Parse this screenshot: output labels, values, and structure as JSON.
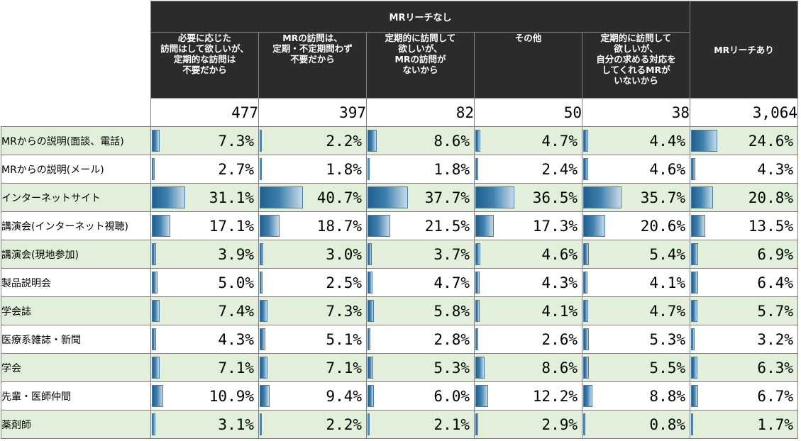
{
  "header": {
    "group_label": "MRリーチなし",
    "columns": [
      "必要に応じた\n訪問はして欲しいが、\n定期的な訪問は\n不要だから",
      "MRの訪問は、\n定期・不定期問わず\n不要だから",
      "定期的に訪問して\n欲しいが、\nMRの訪問が\nないから",
      "その他",
      "定期的に訪問して\n欲しいが、\n自分の求める対応を\nしてくれるMRが\nいないから"
    ],
    "reach_label": "MRリーチあり"
  },
  "counts": [
    "477",
    "397",
    "82",
    "50",
    "38",
    "3,064"
  ],
  "rows": [
    {
      "label": "MRからの説明(面談、電話)",
      "values": [
        "7.3%",
        "2.2%",
        "8.6%",
        "4.7%",
        "4.4%",
        "24.6%"
      ],
      "nums": [
        7.3,
        2.2,
        8.6,
        4.7,
        4.4,
        24.6
      ]
    },
    {
      "label": "MRからの説明(メール)",
      "values": [
        "2.7%",
        "1.8%",
        "1.8%",
        "2.4%",
        "4.6%",
        "4.3%"
      ],
      "nums": [
        2.7,
        1.8,
        1.8,
        2.4,
        4.6,
        4.3
      ]
    },
    {
      "label": "インターネットサイト",
      "values": [
        "31.1%",
        "40.7%",
        "37.7%",
        "36.5%",
        "35.7%",
        "20.8%"
      ],
      "nums": [
        31.1,
        40.7,
        37.7,
        36.5,
        35.7,
        20.8
      ]
    },
    {
      "label": "講演会(インターネット視聴)",
      "values": [
        "17.1%",
        "18.7%",
        "21.5%",
        "17.3%",
        "20.6%",
        "13.5%"
      ],
      "nums": [
        17.1,
        18.7,
        21.5,
        17.3,
        20.6,
        13.5
      ]
    },
    {
      "label": "講演会(現地参加)",
      "values": [
        "3.9%",
        "3.0%",
        "3.7%",
        "4.6%",
        "5.4%",
        "6.9%"
      ],
      "nums": [
        3.9,
        3.0,
        3.7,
        4.6,
        5.4,
        6.9
      ]
    },
    {
      "label": "製品説明会",
      "values": [
        "5.0%",
        "2.5%",
        "4.7%",
        "4.3%",
        "4.1%",
        "6.4%"
      ],
      "nums": [
        5.0,
        2.5,
        4.7,
        4.3,
        4.1,
        6.4
      ]
    },
    {
      "label": "学会誌",
      "values": [
        "7.4%",
        "7.3%",
        "5.8%",
        "4.1%",
        "4.7%",
        "5.7%"
      ],
      "nums": [
        7.4,
        7.3,
        5.8,
        4.1,
        4.7,
        5.7
      ]
    },
    {
      "label": "医療系雑誌・新聞",
      "values": [
        "4.3%",
        "5.1%",
        "2.8%",
        "2.6%",
        "5.3%",
        "3.2%"
      ],
      "nums": [
        4.3,
        5.1,
        2.8,
        2.6,
        5.3,
        3.2
      ]
    },
    {
      "label": "学会",
      "values": [
        "7.1%",
        "7.1%",
        "5.3%",
        "8.6%",
        "5.5%",
        "6.3%"
      ],
      "nums": [
        7.1,
        7.1,
        5.3,
        8.6,
        5.5,
        6.3
      ]
    },
    {
      "label": "先輩・医師仲間",
      "values": [
        "10.9%",
        "9.4%",
        "6.0%",
        "12.2%",
        "8.8%",
        "6.7%"
      ],
      "nums": [
        10.9,
        9.4,
        6.0,
        12.2,
        8.8,
        6.7
      ]
    },
    {
      "label": "薬剤師",
      "values": [
        "3.1%",
        "2.2%",
        "2.1%",
        "2.9%",
        "0.8%",
        "1.7%"
      ],
      "nums": [
        3.1,
        2.2,
        2.1,
        2.9,
        0.8,
        1.7
      ]
    }
  ],
  "colors": {
    "header_bg": "#2b2b2b",
    "row_shade": "#e2efda",
    "bar_dark": "#1f5f8f",
    "bar_light": "#c6dbeb"
  }
}
